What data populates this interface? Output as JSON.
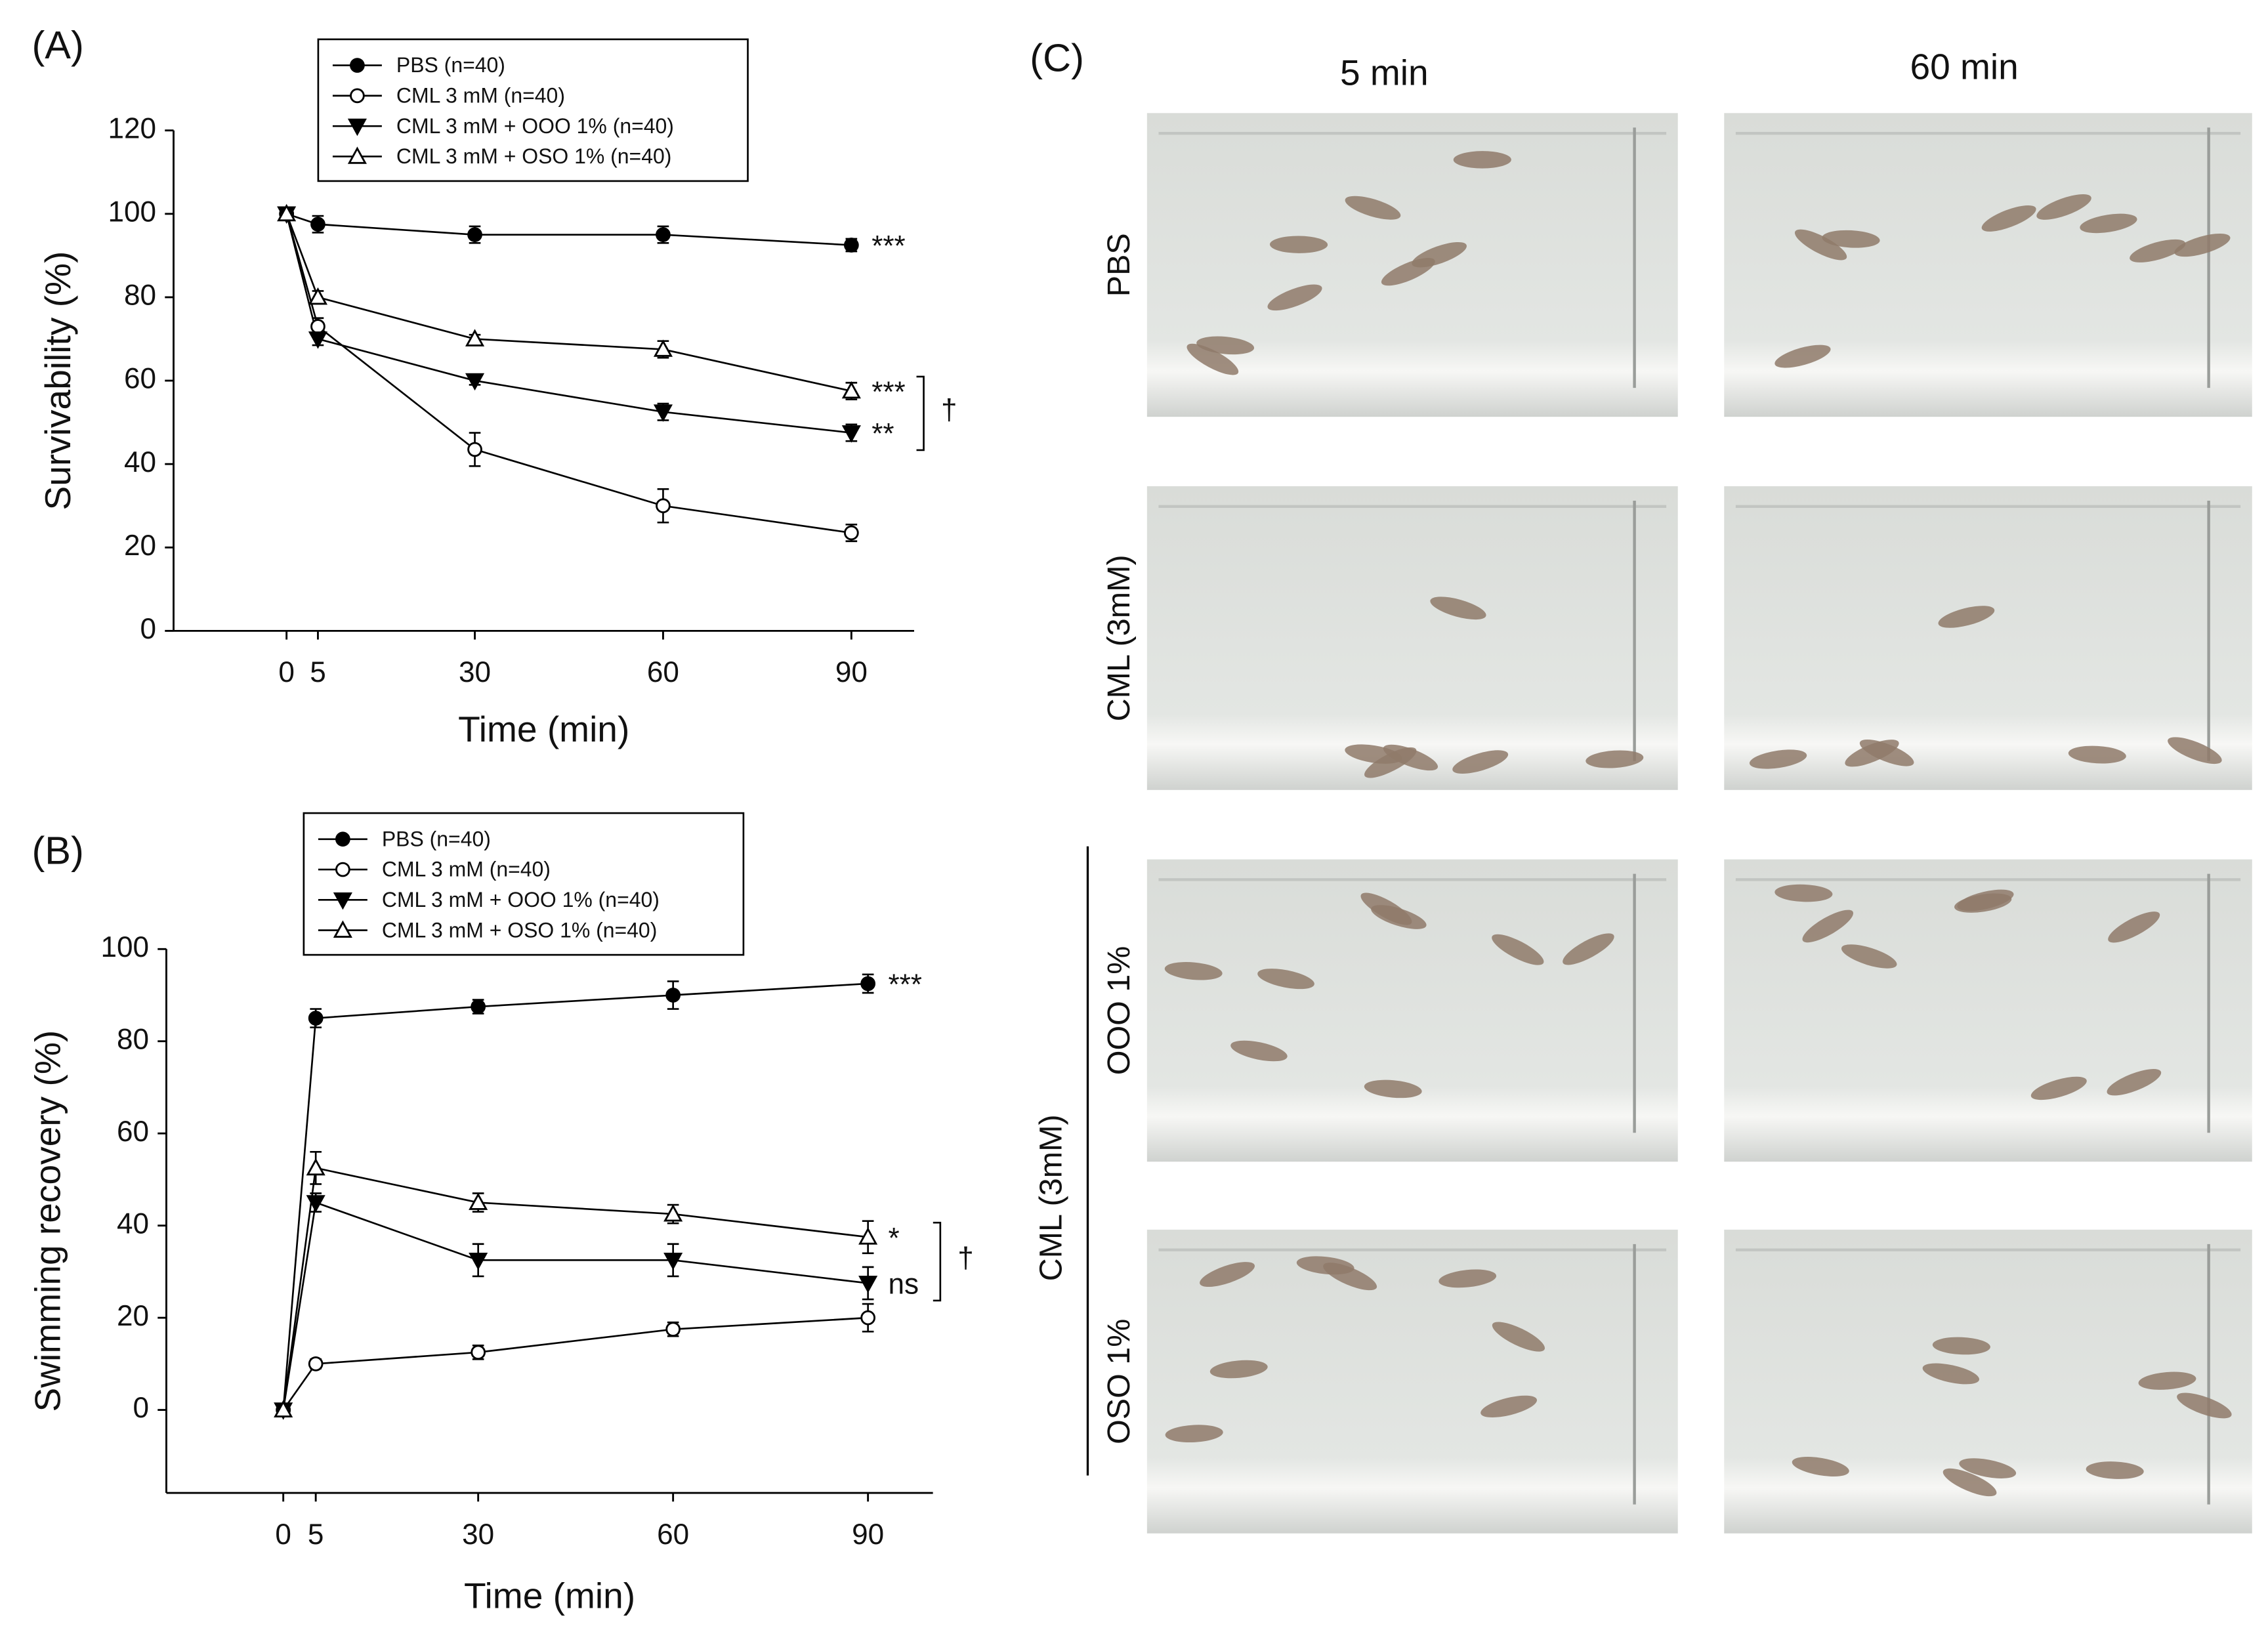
{
  "chart_data": [
    {
      "type": "line",
      "panel_label": "(A)",
      "x_label": "Time (min)",
      "y_label": "Survivability (%)",
      "x": [
        0,
        5,
        30,
        60,
        90
      ],
      "xlim": [
        -18,
        100
      ],
      "xticks": [
        0,
        5,
        30,
        60,
        90
      ],
      "ylim": [
        0,
        120
      ],
      "yticks": [
        0,
        20,
        40,
        60,
        80,
        100,
        120
      ],
      "bracket_label": "†",
      "series": [
        {
          "name": "PBS (n=40)",
          "marker": "filled-circle",
          "color": "#000000",
          "values": [
            100,
            97.5,
            95,
            95,
            92.5
          ],
          "errors": [
            0,
            2,
            2,
            2,
            1.5
          ],
          "annotation": "***"
        },
        {
          "name": "CML 3 mM  (n=40)",
          "marker": "open-circle",
          "color": "#000000",
          "values": [
            100,
            73,
            43.5,
            30,
            23.5
          ],
          "errors": [
            0,
            2,
            4,
            4,
            2
          ],
          "annotation": null
        },
        {
          "name": "CML 3 mM  + OOO 1% (n=40)",
          "marker": "filled-triangle-down",
          "color": "#000000",
          "values": [
            100,
            70,
            60,
            52.5,
            47.5
          ],
          "errors": [
            0,
            1.5,
            1,
            2,
            2
          ],
          "annotation": "**"
        },
        {
          "name": "CML 3 mM + OSO 1% (n=40)",
          "marker": "open-triangle-up",
          "color": "#000000",
          "values": [
            100,
            80,
            70,
            67.5,
            57.5
          ],
          "errors": [
            0,
            1.5,
            1,
            2,
            2
          ],
          "annotation": "***"
        }
      ]
    },
    {
      "type": "line",
      "panel_label": "(B)",
      "x_label": "Time (min)",
      "y_label": "Swimming recovery (%)",
      "x": [
        0,
        5,
        30,
        60,
        90
      ],
      "xlim": [
        -18,
        100
      ],
      "xticks": [
        0,
        5,
        30,
        60,
        90
      ],
      "ylim": [
        -18,
        100
      ],
      "yticks": [
        0,
        20,
        40,
        60,
        80,
        100
      ],
      "bracket_label": "†",
      "series": [
        {
          "name": "PBS (n=40)",
          "marker": "filled-circle",
          "color": "#000000",
          "values": [
            0,
            85,
            87.5,
            90,
            92.5
          ],
          "errors": [
            0,
            2,
            1.5,
            3,
            2
          ],
          "annotation": "***"
        },
        {
          "name": "CML 3 mM (n=40)",
          "marker": "open-circle",
          "color": "#000000",
          "values": [
            0,
            10,
            12.5,
            17.5,
            20
          ],
          "errors": [
            0,
            1,
            1.5,
            1.5,
            3
          ],
          "annotation": null
        },
        {
          "name": "CML 3 mM + OOO 1% (n=40)",
          "marker": "filled-triangle-down",
          "color": "#000000",
          "values": [
            0,
            45,
            32.5,
            32.5,
            27.5
          ],
          "errors": [
            0,
            2,
            3.5,
            3.5,
            3.5
          ],
          "annotation": "ns"
        },
        {
          "name": "CML 3 mM + OSO 1% (n=40)",
          "marker": "open-triangle-up",
          "color": "#000000",
          "values": [
            0,
            52.5,
            45,
            42.5,
            37.5
          ],
          "errors": [
            0,
            3.5,
            2,
            2,
            3.5
          ],
          "annotation": "*"
        }
      ]
    }
  ],
  "photo_panel": {
    "panel_label": "(C)",
    "columns": [
      "5 min",
      "60 min"
    ],
    "rows": [
      "PBS",
      "CML (3mM)",
      "OOO 1%",
      "OSO 1%"
    ],
    "group_label": "CML (3mM)"
  }
}
